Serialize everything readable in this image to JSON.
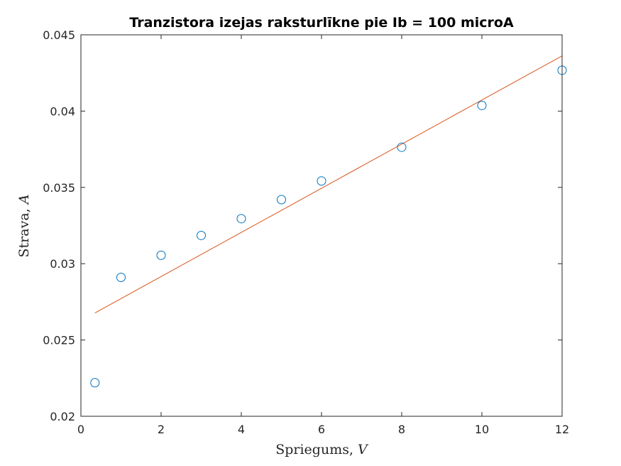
{
  "chart_data": {
    "type": "scatter",
    "title": "Tranzistora izejas raksturlīkne pie Ib = 100 microA",
    "xlabel_text": "Spriegums, ",
    "xlabel_unit": "V",
    "ylabel_text": "Strava, ",
    "ylabel_unit": "A",
    "xlim": [
      0,
      12
    ],
    "ylim": [
      0.02,
      0.045
    ],
    "xticks": [
      "0",
      "2",
      "4",
      "6",
      "8",
      "10",
      "12"
    ],
    "yticks": [
      "0.02",
      "0.025",
      "0.03",
      "0.035",
      "0.04",
      "0.045"
    ],
    "grid": false,
    "colors": {
      "points": "#0072BD",
      "fit": "#D95319",
      "axis": "#262626"
    },
    "series": [
      {
        "type": "scatter",
        "x": [
          0.35,
          1,
          2,
          3,
          4,
          5,
          6,
          8,
          10,
          12
        ],
        "y": [
          0.0222,
          0.0291,
          0.03055,
          0.03185,
          0.03295,
          0.0342,
          0.03542,
          0.03763,
          0.04037,
          0.04268
        ]
      },
      {
        "type": "line",
        "x": [
          0.35,
          12
        ],
        "y": [
          0.02677,
          0.04362
        ]
      }
    ]
  }
}
